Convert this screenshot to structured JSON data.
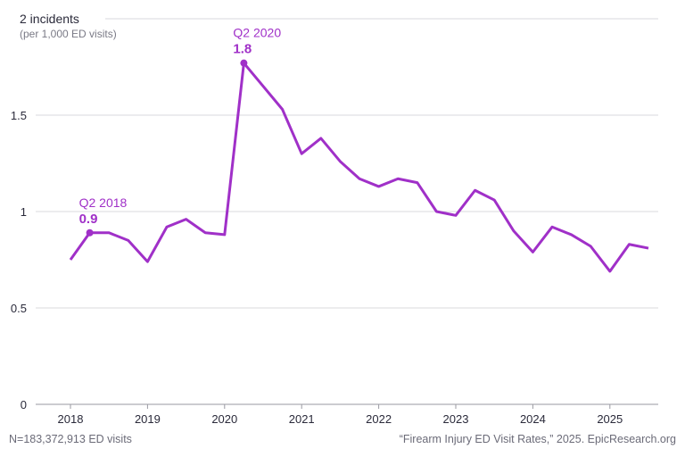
{
  "chart_data": {
    "type": "line",
    "ylabel": "incidents",
    "ylabel_sub": "(per 1,000 ED visits)",
    "ylim": [
      0,
      2
    ],
    "yticks": [
      0,
      0.5,
      1,
      1.5,
      2
    ],
    "ytick_labels": [
      "0",
      "0.5",
      "1",
      "1.5",
      "2 incidents"
    ],
    "xticks": [
      2018,
      2019,
      2020,
      2021,
      2022,
      2023,
      2024,
      2025
    ],
    "xtick_labels": [
      "2018",
      "2019",
      "2020",
      "2021",
      "2022",
      "2023",
      "2024",
      "2025"
    ],
    "grid": true,
    "line_color": "#a030c8",
    "x": [
      2018.0,
      2018.25,
      2018.5,
      2018.75,
      2019.0,
      2019.25,
      2019.5,
      2019.75,
      2020.0,
      2020.25,
      2020.5,
      2020.75,
      2021.0,
      2021.25,
      2021.5,
      2021.75,
      2022.0,
      2022.25,
      2022.5,
      2022.75,
      2023.0,
      2023.25,
      2023.5,
      2023.75,
      2024.0,
      2024.25,
      2024.5,
      2024.75,
      2025.0,
      2025.25,
      2025.5
    ],
    "values": [
      0.75,
      0.89,
      0.89,
      0.85,
      0.74,
      0.92,
      0.96,
      0.89,
      0.88,
      1.77,
      1.65,
      1.53,
      1.3,
      1.38,
      1.26,
      1.17,
      1.13,
      1.17,
      1.15,
      1.0,
      0.98,
      1.11,
      1.06,
      0.9,
      0.79,
      0.92,
      0.88,
      0.82,
      0.69,
      0.83,
      0.81
    ],
    "annotations": [
      {
        "index": 1,
        "label": "Q2 2018",
        "value": "0.9"
      },
      {
        "index": 9,
        "label": "Q2 2020",
        "value": "1.8"
      }
    ]
  },
  "footer": {
    "n_note": "N=183,372,913 ED visits",
    "source": "“Firearm Injury ED Visit Rates,” 2025. EpicResearch.org"
  }
}
